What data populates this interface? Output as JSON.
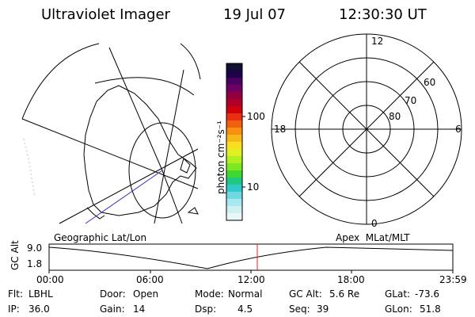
{
  "header": {
    "title": "Ultraviolet Imager",
    "date": "19 Jul 07",
    "time": "12:30:30 UT"
  },
  "colorbar": {
    "label": "photon cm⁻²s⁻¹",
    "ticks": [
      "100",
      "10"
    ],
    "colors": [
      "#101030",
      "#200048",
      "#4a0060",
      "#700060",
      "#900040",
      "#b00028",
      "#d00010",
      "#e83010",
      "#f06010",
      "#f89010",
      "#f8b818",
      "#f8e020",
      "#e0f020",
      "#b0f020",
      "#80e820",
      "#40d830",
      "#20c880",
      "#30c8c8",
      "#70d8e0",
      "#a8e8f0",
      "#d0f0f0",
      "#e8f8f8"
    ]
  },
  "left_panel": {
    "caption": "Geographic Lat/Lon"
  },
  "right_panel": {
    "caption": "Apex  MLat/MLT",
    "mlt_labels": {
      "top": "12",
      "left": "18",
      "right": "6",
      "bottom": "0"
    },
    "lat_labels": [
      "60",
      "70",
      "80"
    ]
  },
  "altitude_strip": {
    "ylabel": "GC Alt",
    "y_ticks": [
      "9.0",
      "1.8"
    ],
    "x_ticks": [
      "00:00",
      "06:00",
      "12:00",
      "18:00",
      "23:59"
    ],
    "current_time_color": "#e02020"
  },
  "footer": {
    "row1": [
      {
        "label": "Flt:",
        "value": "LBHL"
      },
      {
        "label": "Door:",
        "value": "Open"
      },
      {
        "label": "Mode:",
        "value": "Normal"
      },
      {
        "label": "GC Alt:",
        "value": "5.6 Re"
      },
      {
        "label": "GLat:",
        "value": "-73.6"
      }
    ],
    "row2": [
      {
        "label": "IP:",
        "value": "36.0"
      },
      {
        "label": "Gain:",
        "value": "14"
      },
      {
        "label": "Dsp:",
        "value": "4.5"
      },
      {
        "label": "Seq:",
        "value": "39"
      },
      {
        "label": "GLon:",
        "value": "51.8"
      }
    ]
  }
}
